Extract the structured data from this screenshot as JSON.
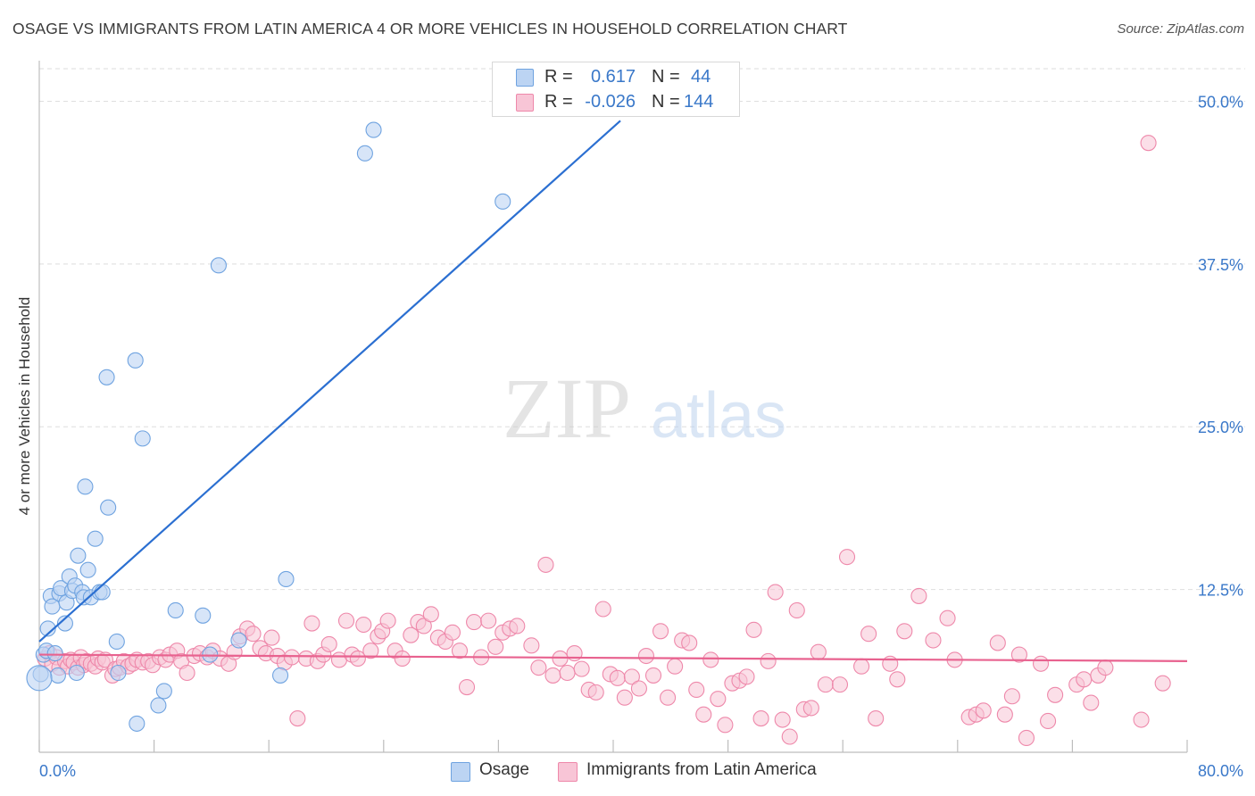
{
  "title": "OSAGE VS IMMIGRANTS FROM LATIN AMERICA 4 OR MORE VEHICLES IN HOUSEHOLD CORRELATION CHART",
  "source": "Source: ZipAtlas.com",
  "watermark": {
    "zip": "ZIP",
    "atlas": "atlas"
  },
  "colors": {
    "osage": "#6fa3e0",
    "osage_fill": "#bcd4f3",
    "osage_line": "#2b6fd1",
    "immigrants": "#ee88aa",
    "immigrants_fill": "#f8c5d6",
    "immigrants_line": "#e8628f",
    "axis_value": "#3a78c9"
  },
  "legend": {
    "rows": [
      {
        "r_label": "R =",
        "r_value": "0.617",
        "n_label": "N =",
        "n_value": "44"
      },
      {
        "r_label": "R =",
        "r_value": "-0.026",
        "n_label": "N =",
        "n_value": "144"
      }
    ]
  },
  "bottom_legend": {
    "osage": "Osage",
    "immigrants": "Immigrants from Latin America"
  },
  "chart_data": {
    "type": "scatter",
    "title": "OSAGE VS IMMIGRANTS FROM LATIN AMERICA 4 OR MORE VEHICLES IN HOUSEHOLD CORRELATION CHART",
    "xlabel": "",
    "ylabel": "4 or more Vehicles in Household",
    "xlim": [
      0,
      80
    ],
    "ylim": [
      0,
      52.5
    ],
    "x_tick_labels": [
      "0.0%",
      "80.0%"
    ],
    "y_ticks": [
      12.5,
      25.0,
      37.5,
      50.0
    ],
    "y_tick_labels": [
      "12.5%",
      "25.0%",
      "37.5%",
      "50.0%"
    ],
    "grid": true,
    "series": [
      {
        "name": "Osage",
        "r": 0.617,
        "n": 44,
        "trend": {
          "x": [
            0,
            40.5
          ],
          "y": [
            8.5,
            48.5
          ]
        },
        "points": [
          [
            0.1,
            6.0
          ],
          [
            0.3,
            7.5
          ],
          [
            0.5,
            7.8
          ],
          [
            0.6,
            9.5
          ],
          [
            0.8,
            12.0
          ],
          [
            0.9,
            11.2
          ],
          [
            1.1,
            7.6
          ],
          [
            1.3,
            5.9
          ],
          [
            1.4,
            12.2
          ],
          [
            1.5,
            12.6
          ],
          [
            1.8,
            9.9
          ],
          [
            1.9,
            11.5
          ],
          [
            2.1,
            13.5
          ],
          [
            2.3,
            12.4
          ],
          [
            2.5,
            12.8
          ],
          [
            2.6,
            6.1
          ],
          [
            2.7,
            15.1
          ],
          [
            3.0,
            12.3
          ],
          [
            3.1,
            11.9
          ],
          [
            3.2,
            20.4
          ],
          [
            3.4,
            14.0
          ],
          [
            3.6,
            11.9
          ],
          [
            3.9,
            16.4
          ],
          [
            4.2,
            12.3
          ],
          [
            4.4,
            12.3
          ],
          [
            4.7,
            28.8
          ],
          [
            4.8,
            18.8
          ],
          [
            5.4,
            8.5
          ],
          [
            5.5,
            6.1
          ],
          [
            6.8,
            2.2
          ],
          [
            6.7,
            30.1
          ],
          [
            7.2,
            24.1
          ],
          [
            8.3,
            3.6
          ],
          [
            8.7,
            4.7
          ],
          [
            9.5,
            10.9
          ],
          [
            11.4,
            10.5
          ],
          [
            11.9,
            7.5
          ],
          [
            12.5,
            37.4
          ],
          [
            13.9,
            8.6
          ],
          [
            16.8,
            5.9
          ],
          [
            17.2,
            13.3
          ],
          [
            22.7,
            46.0
          ],
          [
            23.3,
            47.8
          ],
          [
            32.3,
            42.3
          ]
        ]
      },
      {
        "name": "Immigrants from Latin America",
        "r": -0.026,
        "n": 144,
        "trend": {
          "x": [
            0,
            80
          ],
          "y": [
            7.5,
            7.0
          ]
        },
        "points": [
          [
            0.4,
            7.2
          ],
          [
            0.7,
            7.6
          ],
          [
            0.9,
            6.8
          ],
          [
            1.2,
            7.3
          ],
          [
            1.4,
            6.5
          ],
          [
            1.8,
            7.0
          ],
          [
            2.0,
            6.6
          ],
          [
            2.2,
            7.1
          ],
          [
            2.4,
            6.9
          ],
          [
            2.7,
            6.5
          ],
          [
            2.9,
            7.3
          ],
          [
            3.1,
            6.7
          ],
          [
            3.3,
            7.0
          ],
          [
            3.6,
            6.8
          ],
          [
            3.9,
            6.6
          ],
          [
            4.1,
            7.2
          ],
          [
            4.4,
            6.9
          ],
          [
            4.6,
            7.1
          ],
          [
            5.1,
            5.9
          ],
          [
            5.3,
            6.4
          ],
          [
            5.6,
            6.5
          ],
          [
            5.9,
            7.0
          ],
          [
            6.2,
            6.6
          ],
          [
            6.5,
            6.8
          ],
          [
            6.8,
            7.1
          ],
          [
            7.2,
            6.9
          ],
          [
            7.6,
            7.0
          ],
          [
            7.9,
            6.7
          ],
          [
            8.4,
            7.3
          ],
          [
            8.8,
            7.1
          ],
          [
            9.1,
            7.5
          ],
          [
            9.6,
            7.8
          ],
          [
            9.9,
            7.0
          ],
          [
            10.3,
            6.1
          ],
          [
            10.8,
            7.4
          ],
          [
            11.2,
            7.6
          ],
          [
            11.7,
            7.3
          ],
          [
            12.1,
            7.8
          ],
          [
            12.6,
            7.2
          ],
          [
            13.2,
            6.8
          ],
          [
            13.6,
            7.7
          ],
          [
            14.0,
            8.9
          ],
          [
            14.5,
            9.5
          ],
          [
            14.9,
            9.1
          ],
          [
            15.4,
            8.0
          ],
          [
            15.8,
            7.6
          ],
          [
            16.2,
            8.8
          ],
          [
            16.6,
            7.4
          ],
          [
            17.1,
            6.9
          ],
          [
            17.6,
            7.3
          ],
          [
            18.0,
            2.6
          ],
          [
            18.6,
            7.2
          ],
          [
            19.0,
            9.9
          ],
          [
            19.4,
            7.0
          ],
          [
            19.8,
            7.5
          ],
          [
            20.2,
            8.3
          ],
          [
            20.9,
            7.1
          ],
          [
            21.4,
            10.1
          ],
          [
            21.8,
            7.5
          ],
          [
            22.2,
            7.2
          ],
          [
            22.6,
            9.8
          ],
          [
            23.1,
            7.8
          ],
          [
            23.6,
            8.9
          ],
          [
            23.9,
            9.3
          ],
          [
            24.3,
            10.1
          ],
          [
            24.8,
            7.8
          ],
          [
            25.3,
            7.2
          ],
          [
            25.9,
            9.0
          ],
          [
            26.4,
            10.0
          ],
          [
            26.8,
            9.7
          ],
          [
            27.3,
            10.6
          ],
          [
            27.8,
            8.8
          ],
          [
            28.3,
            8.5
          ],
          [
            28.8,
            9.2
          ],
          [
            29.3,
            7.8
          ],
          [
            29.8,
            5.0
          ],
          [
            30.3,
            10.0
          ],
          [
            30.8,
            7.3
          ],
          [
            31.3,
            10.1
          ],
          [
            31.8,
            8.1
          ],
          [
            32.3,
            9.2
          ],
          [
            32.8,
            9.5
          ],
          [
            33.3,
            9.7
          ],
          [
            34.3,
            8.2
          ],
          [
            35.3,
            14.4
          ],
          [
            34.8,
            6.5
          ],
          [
            35.8,
            5.9
          ],
          [
            36.3,
            7.2
          ],
          [
            36.8,
            6.1
          ],
          [
            37.3,
            7.6
          ],
          [
            37.8,
            6.4
          ],
          [
            38.3,
            4.8
          ],
          [
            38.8,
            4.6
          ],
          [
            39.3,
            11.0
          ],
          [
            39.8,
            6.0
          ],
          [
            40.3,
            5.7
          ],
          [
            40.8,
            4.2
          ],
          [
            41.3,
            5.8
          ],
          [
            41.8,
            4.9
          ],
          [
            42.3,
            7.4
          ],
          [
            42.8,
            5.9
          ],
          [
            43.3,
            9.3
          ],
          [
            43.8,
            4.2
          ],
          [
            44.3,
            6.6
          ],
          [
            44.8,
            8.6
          ],
          [
            45.3,
            8.4
          ],
          [
            45.8,
            4.8
          ],
          [
            46.3,
            2.9
          ],
          [
            46.8,
            7.1
          ],
          [
            47.3,
            4.1
          ],
          [
            47.8,
            2.1
          ],
          [
            48.3,
            5.3
          ],
          [
            48.8,
            5.5
          ],
          [
            49.3,
            5.8
          ],
          [
            49.8,
            9.4
          ],
          [
            50.3,
            2.6
          ],
          [
            50.8,
            7.0
          ],
          [
            51.3,
            12.3
          ],
          [
            51.8,
            2.5
          ],
          [
            52.3,
            1.2
          ],
          [
            52.8,
            10.9
          ],
          [
            53.3,
            3.3
          ],
          [
            53.8,
            3.4
          ],
          [
            54.3,
            7.7
          ],
          [
            54.8,
            5.2
          ],
          [
            55.8,
            5.2
          ],
          [
            56.3,
            15.0
          ],
          [
            57.3,
            6.6
          ],
          [
            57.8,
            9.1
          ],
          [
            58.3,
            2.6
          ],
          [
            59.3,
            6.8
          ],
          [
            59.8,
            5.6
          ],
          [
            60.3,
            9.3
          ],
          [
            61.3,
            12.0
          ],
          [
            62.3,
            8.6
          ],
          [
            63.3,
            10.3
          ],
          [
            63.8,
            7.1
          ],
          [
            64.8,
            2.7
          ],
          [
            65.3,
            2.9
          ],
          [
            65.8,
            3.2
          ],
          [
            66.8,
            8.4
          ],
          [
            67.3,
            2.9
          ],
          [
            67.8,
            4.3
          ],
          [
            68.3,
            7.5
          ],
          [
            68.8,
            1.1
          ],
          [
            69.8,
            6.8
          ],
          [
            70.3,
            2.4
          ],
          [
            70.8,
            4.4
          ],
          [
            72.3,
            5.2
          ],
          [
            72.8,
            5.6
          ],
          [
            73.3,
            3.8
          ],
          [
            73.8,
            5.9
          ],
          [
            74.3,
            6.5
          ],
          [
            76.8,
            2.5
          ],
          [
            78.3,
            5.3
          ],
          [
            77.3,
            46.8
          ]
        ]
      }
    ]
  },
  "axes": {
    "x_min_label": "0.0%",
    "x_max_label": "80.0%",
    "y_axis_title": "4 or more Vehicles in Household"
  }
}
